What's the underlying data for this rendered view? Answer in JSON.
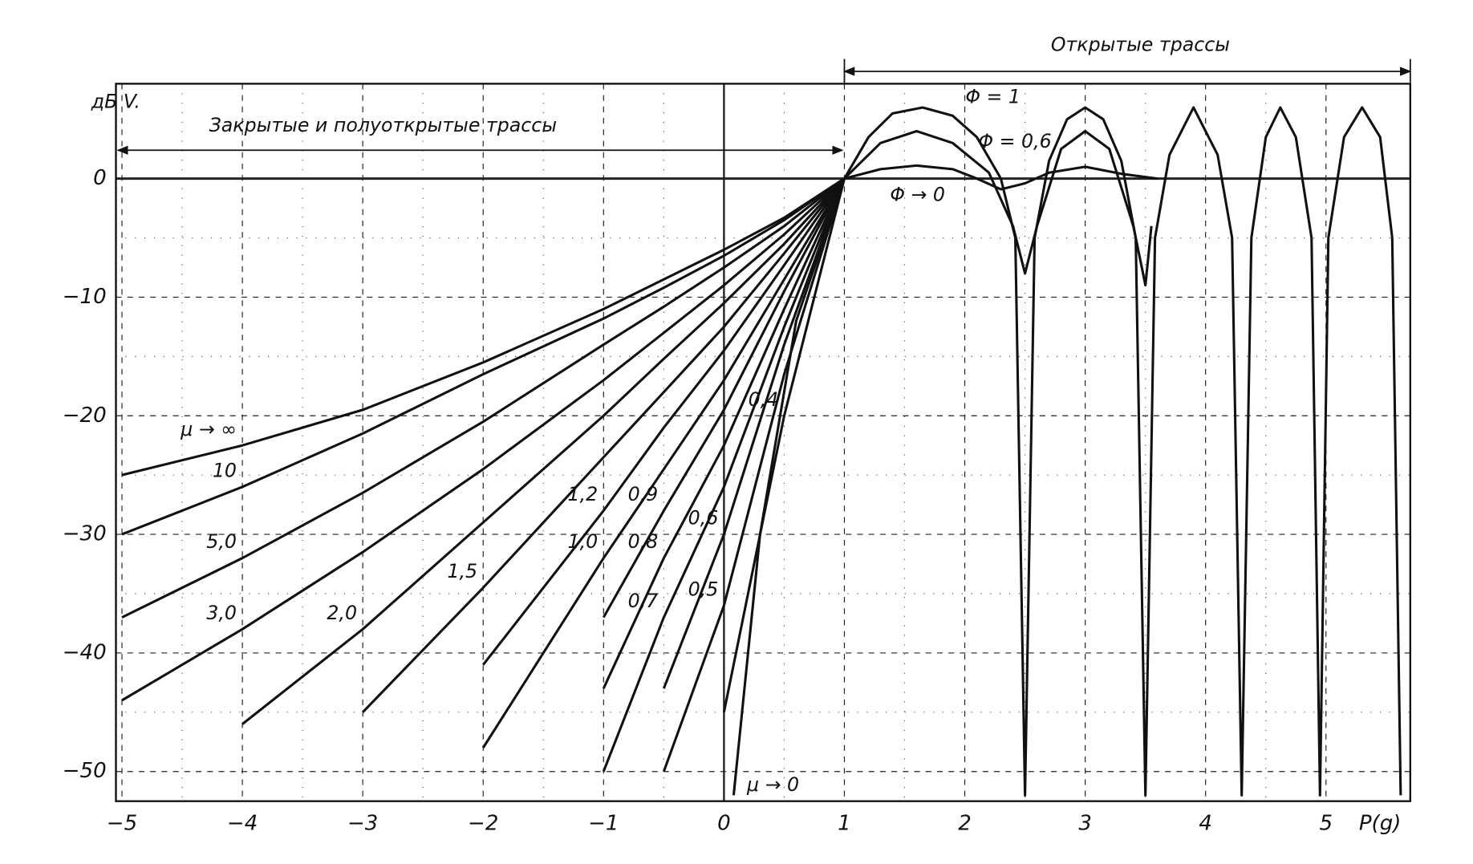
{
  "chart_data": {
    "type": "line",
    "ylabel": "дБ V.",
    "xlabel": "P(g)",
    "annotations": [
      "Открытые трассы",
      "Закрытые и полуоткрытые трассы"
    ],
    "xlim": [
      -5.05,
      5.7
    ],
    "ylim": [
      -52.5,
      8
    ],
    "xticks": [
      {
        "value": -5,
        "label": "−5"
      },
      {
        "value": -4,
        "label": "−4"
      },
      {
        "value": -3,
        "label": "−3"
      },
      {
        "value": -2,
        "label": "−2"
      },
      {
        "value": -1,
        "label": "−1"
      },
      0,
      1,
      2,
      3,
      4,
      5
    ],
    "yticks": [
      0,
      {
        "value": -10,
        "label": "−10"
      },
      {
        "value": -20,
        "label": "−20"
      },
      {
        "value": -30,
        "label": "−30"
      },
      {
        "value": -40,
        "label": "−40"
      },
      {
        "value": -50,
        "label": "−50"
      }
    ],
    "grid": true,
    "color": "#111111",
    "x": [
      -5,
      -4,
      -3,
      -2,
      -1,
      -0.5,
      0,
      0.5,
      1
    ],
    "series": [
      {
        "name": "μ → ∞",
        "values": [
          -25,
          -22.5,
          -19.5,
          -15.5,
          -11,
          -8.5,
          -6,
          -3.3,
          0
        ]
      },
      {
        "name": "10",
        "values": [
          -30,
          -26,
          -21.5,
          -16.5,
          -11.8,
          -9.2,
          -6.5,
          -3.5,
          0
        ]
      },
      {
        "name": "5,0",
        "values": [
          -37,
          -32,
          -26.5,
          -20.5,
          -14,
          -10.8,
          -7.5,
          -4,
          0
        ]
      },
      {
        "name": "3,0",
        "values": [
          -44,
          -38,
          -31.5,
          -24.5,
          -17,
          -13,
          -9,
          -4.7,
          0
        ]
      },
      {
        "name": "2,0",
        "values": [
          null,
          -46,
          -38,
          -29,
          -20,
          -15.2,
          -10.5,
          -5.5,
          0
        ]
      },
      {
        "name": "1,5",
        "values": [
          null,
          null,
          -45,
          -34.5,
          -23.5,
          -18,
          -12.5,
          -6.3,
          0
        ]
      },
      {
        "name": "1,2",
        "values": [
          null,
          null,
          null,
          -41,
          -28,
          -21,
          -14.5,
          -7.3,
          0
        ]
      },
      {
        "name": "1,0",
        "values": [
          null,
          null,
          null,
          -48,
          -32,
          -24.5,
          -17,
          -8.5,
          0
        ]
      },
      {
        "name": "0,9",
        "values": [
          null,
          null,
          null,
          null,
          -37,
          -28,
          -19.5,
          -9.5,
          0
        ]
      },
      {
        "name": "0,8",
        "values": [
          null,
          null,
          null,
          null,
          -43,
          -32,
          -22.5,
          -11,
          0
        ]
      },
      {
        "name": "0,7",
        "values": [
          null,
          null,
          null,
          null,
          -50,
          -37,
          -26,
          -12.5,
          0
        ]
      },
      {
        "name": "0,6",
        "values": [
          null,
          null,
          null,
          null,
          null,
          -43,
          -30,
          -14,
          0
        ]
      },
      {
        "name": "0,5",
        "values": [
          null,
          null,
          null,
          null,
          null,
          -50,
          -36,
          -16.5,
          0
        ]
      },
      {
        "name": "0,4",
        "values": [
          null,
          null,
          null,
          null,
          null,
          null,
          -45,
          -20,
          0
        ]
      },
      {
        "name": "μ → 0",
        "x": [
          0.08,
          0.3,
          0.6,
          1
        ],
        "values": [
          -52,
          -30,
          -12,
          0
        ]
      },
      {
        "name": "Φ = 1",
        "x": [
          1,
          1.2,
          1.4,
          1.65,
          1.9,
          2.1,
          2.3,
          2.42,
          2.5,
          2.58,
          2.7,
          2.85,
          3.0,
          3.15,
          3.3,
          3.42,
          3.5,
          3.58,
          3.7,
          3.9,
          4.1,
          4.22,
          4.3,
          4.38,
          4.5,
          4.62,
          4.75,
          4.88,
          4.95,
          5.02,
          5.15,
          5.3,
          5.45,
          5.55,
          5.62
        ],
        "values": [
          0,
          3.5,
          5.5,
          6,
          5.3,
          3.5,
          0,
          -5,
          -52,
          -5,
          1.5,
          5,
          6,
          5,
          1.5,
          -5,
          -52,
          -5,
          2,
          6,
          2,
          -5,
          -52,
          -5,
          3.5,
          6,
          3.5,
          -5,
          -52,
          -5,
          3.5,
          6,
          3.5,
          -5,
          -52
        ]
      },
      {
        "name": "Φ = 0,6",
        "x": [
          1,
          1.3,
          1.6,
          1.9,
          2.2,
          2.4,
          2.5,
          2.6,
          2.8,
          3.0,
          3.2,
          3.4,
          3.5,
          3.55
        ],
        "values": [
          0,
          3,
          4,
          3,
          0.5,
          -4,
          -8,
          -4,
          2.5,
          4,
          2.5,
          -4,
          -9,
          -4
        ]
      },
      {
        "name": "Φ → 0",
        "x": [
          1,
          1.3,
          1.6,
          1.9,
          2.1,
          2.3,
          2.5,
          2.7,
          3.0,
          3.3,
          3.6
        ],
        "values": [
          0,
          0.8,
          1.1,
          0.8,
          0,
          -0.9,
          -0.4,
          0.5,
          1,
          0.4,
          0
        ]
      }
    ]
  }
}
